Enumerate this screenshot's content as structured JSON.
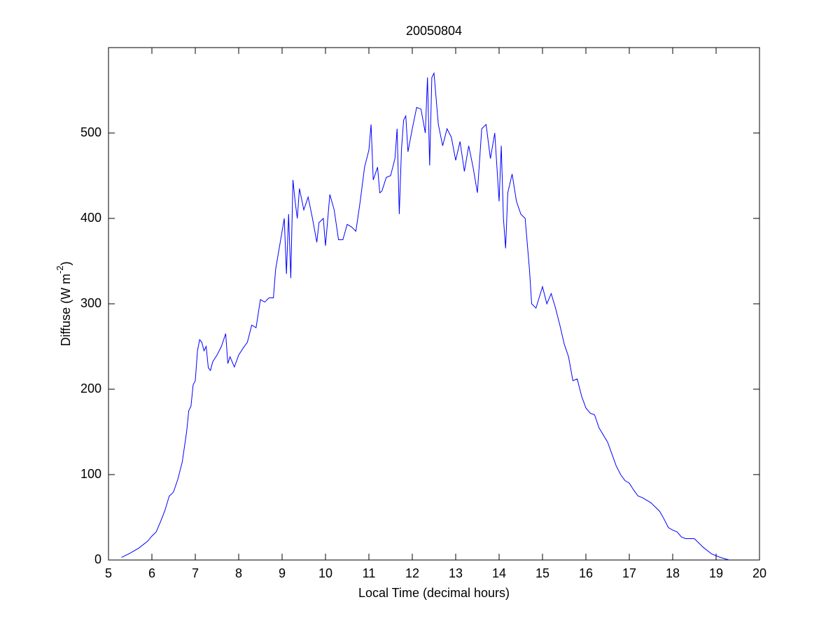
{
  "chart_data": {
    "type": "line",
    "title": "20050804",
    "xlabel": "Local Time (decimal hours)",
    "ylabel": [
      "Diffuse (W m",
      "-2",
      ")"
    ],
    "color": "#0000ff",
    "xlim": [
      5,
      20
    ],
    "xticks": [
      5,
      6,
      7,
      8,
      9,
      10,
      11,
      12,
      13,
      14,
      15,
      16,
      17,
      18,
      19,
      20
    ],
    "ylim": [
      0,
      600
    ],
    "yticks": [
      0,
      100,
      200,
      300,
      400,
      500
    ],
    "x": [
      5.3,
      5.5,
      5.7,
      5.9,
      6.0,
      6.1,
      6.2,
      6.3,
      6.4,
      6.45,
      6.5,
      6.6,
      6.7,
      6.8,
      6.85,
      6.9,
      6.95,
      7.0,
      7.05,
      7.1,
      7.15,
      7.2,
      7.25,
      7.3,
      7.35,
      7.4,
      7.5,
      7.6,
      7.7,
      7.75,
      7.8,
      7.9,
      8.0,
      8.1,
      8.2,
      8.3,
      8.4,
      8.5,
      8.6,
      8.7,
      8.8,
      8.85,
      8.9,
      9.0,
      9.05,
      9.1,
      9.15,
      9.2,
      9.25,
      9.3,
      9.35,
      9.4,
      9.5,
      9.6,
      9.7,
      9.8,
      9.85,
      9.95,
      10.0,
      10.1,
      10.2,
      10.3,
      10.4,
      10.5,
      10.6,
      10.7,
      10.8,
      10.9,
      11.0,
      11.05,
      11.1,
      11.2,
      11.25,
      11.3,
      11.4,
      11.5,
      11.6,
      11.65,
      11.7,
      11.75,
      11.8,
      11.85,
      11.9,
      12.0,
      12.1,
      12.2,
      12.3,
      12.35,
      12.4,
      12.45,
      12.5,
      12.55,
      12.6,
      12.7,
      12.8,
      12.9,
      13.0,
      13.1,
      13.2,
      13.3,
      13.4,
      13.5,
      13.6,
      13.7,
      13.8,
      13.9,
      14.0,
      14.05,
      14.1,
      14.15,
      14.2,
      14.3,
      14.4,
      14.5,
      14.6,
      14.7,
      14.75,
      14.85,
      15.0,
      15.1,
      15.2,
      15.3,
      15.4,
      15.5,
      15.6,
      15.7,
      15.8,
      15.9,
      16.0,
      16.1,
      16.2,
      16.3,
      16.5,
      16.7,
      16.8,
      16.9,
      17.0,
      17.1,
      17.2,
      17.3,
      17.4,
      17.5,
      17.7,
      17.8,
      17.9,
      18.0,
      18.1,
      18.2,
      18.3,
      18.5,
      18.7,
      18.9,
      19.1,
      19.3
    ],
    "values": [
      3,
      8,
      14,
      22,
      28,
      33,
      45,
      58,
      75,
      77,
      80,
      95,
      115,
      150,
      175,
      180,
      205,
      210,
      245,
      258,
      255,
      245,
      250,
      225,
      222,
      232,
      240,
      250,
      265,
      230,
      238,
      226,
      240,
      248,
      255,
      275,
      272,
      305,
      302,
      307,
      307,
      340,
      355,
      385,
      400,
      335,
      405,
      330,
      445,
      420,
      400,
      435,
      410,
      425,
      400,
      372,
      395,
      400,
      368,
      428,
      410,
      375,
      375,
      393,
      390,
      385,
      420,
      460,
      480,
      510,
      445,
      460,
      430,
      432,
      448,
      450,
      470,
      505,
      405,
      480,
      515,
      520,
      478,
      505,
      530,
      528,
      500,
      565,
      462,
      565,
      570,
      540,
      510,
      485,
      505,
      495,
      468,
      490,
      455,
      485,
      460,
      430,
      505,
      510,
      470,
      500,
      420,
      485,
      400,
      365,
      430,
      452,
      420,
      405,
      400,
      340,
      300,
      295,
      320,
      300,
      312,
      295,
      275,
      253,
      238,
      210,
      212,
      192,
      178,
      172,
      170,
      155,
      138,
      110,
      100,
      93,
      90,
      82,
      75,
      73,
      70,
      67,
      57,
      48,
      38,
      35,
      33,
      27,
      25,
      25,
      15,
      7,
      3,
      0
    ]
  }
}
